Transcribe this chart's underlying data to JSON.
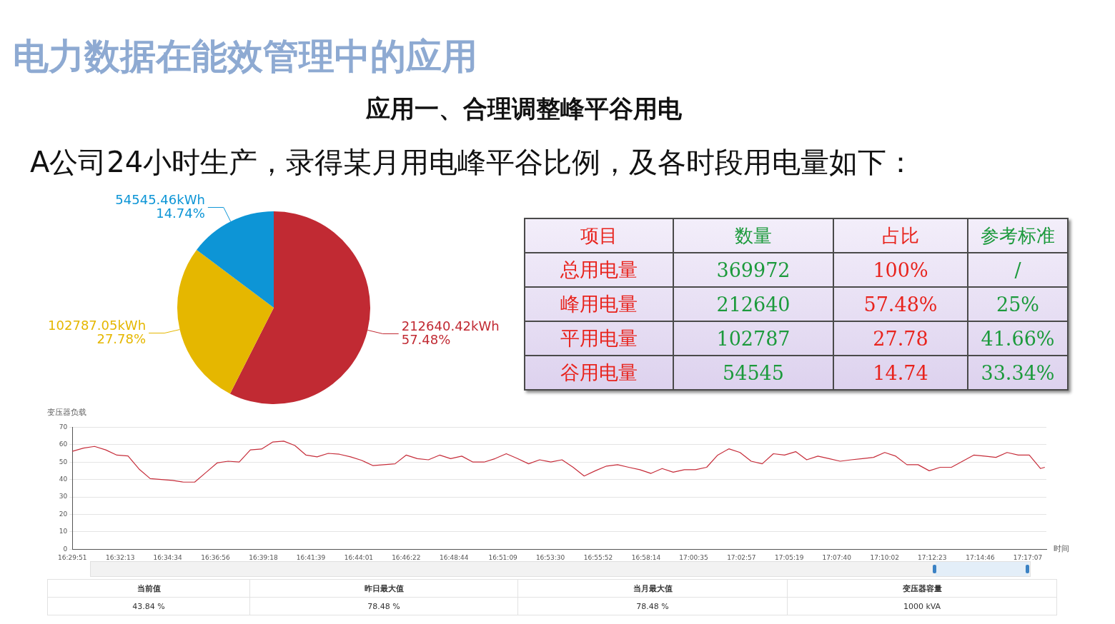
{
  "chart_data": [
    {
      "type": "pie",
      "title": "电力数据在能效管理中的应用",
      "annotations": [
        "A公司24小时生产，录得某月用电峰平谷比例，及各时段用电量如下："
      ],
      "categories": [
        null,
        null,
        null
      ],
      "values": [
        212640.42,
        102787.05,
        54545.46
      ],
      "colors": [
        "#c12a33",
        "#e5b700",
        "#0d95d6"
      ],
      "value_labels": [
        "212640.42kWh\n57.48%",
        "102787.05kWh\n27.78%",
        "54545.46kWh\n14.74%"
      ]
    },
    {
      "type": "other",
      "title": "应用一、合理调整峰平谷用电",
      "categories": [
        "项目",
        "数量",
        "占比",
        "参考标准"
      ],
      "annotations": [
        "总用电量",
        "369972",
        "100%",
        "/",
        "峰用电量",
        "212640",
        "57.48%",
        "25%",
        "平用电量",
        "102787",
        "27.78",
        "41.66%",
        "谷用电量",
        "54545",
        "14.74",
        "33.34%"
      ]
    },
    {
      "type": "line",
      "title": "变压器负载",
      "xlabel": "时间",
      "color": "#c62d3a",
      "marker": "none",
      "grid": "y",
      "x": [
        16.4975,
        16.5067,
        16.5158,
        16.525,
        16.5342,
        16.5434,
        16.5525,
        16.5617,
        16.5709,
        16.5801,
        16.5892,
        16.5984,
        16.6076,
        16.6168,
        16.6259,
        16.6351,
        16.6443,
        16.6535,
        16.6626,
        16.6718,
        16.681,
        16.6902,
        16.6993,
        16.7085,
        16.7177,
        16.7269,
        16.736,
        16.7452,
        16.7544,
        16.7636,
        16.7727,
        16.7819,
        16.7911,
        16.8003,
        16.8094,
        16.8186,
        16.8278,
        16.837,
        16.8461,
        16.8553,
        16.8645,
        16.8737,
        16.8828,
        16.892,
        16.9012,
        16.9104,
        16.9195,
        16.9287,
        16.9379,
        16.9471,
        16.9562,
        16.9654,
        16.9746,
        16.9838,
        16.9929,
        17.0021,
        17.0113,
        17.0205,
        17.0296,
        17.0388,
        17.048,
        17.0572,
        17.0663,
        17.0755,
        17.0847,
        17.0939,
        17.103,
        17.1122,
        17.1214,
        17.1306,
        17.1397,
        17.1489,
        17.1581,
        17.1673,
        17.1764,
        17.1856,
        17.1948,
        17.204,
        17.2131,
        17.2223,
        17.2315,
        17.2407,
        17.2498,
        17.259,
        17.2682,
        17.2774,
        17.2865,
        17.2957,
        17.2993
      ],
      "values": [
        56.2,
        58,
        59,
        57,
        54,
        53.5,
        46,
        40.5,
        40,
        39.5,
        38.5,
        38.5,
        44,
        49.5,
        50.5,
        50,
        57,
        57.5,
        61.5,
        62,
        59.5,
        54,
        53,
        55,
        54.5,
        53,
        51,
        48,
        48.5,
        49,
        54,
        52,
        51.3,
        54,
        52,
        53.4,
        50,
        50,
        52,
        54.8,
        52,
        49,
        51.3,
        50,
        51.3,
        47,
        42,
        45,
        47.7,
        48.5,
        47,
        45.6,
        43.5,
        46.3,
        44.2,
        45.6,
        45.6,
        47,
        54,
        57.6,
        55.5,
        50.5,
        49,
        54.8,
        54,
        56,
        51.3,
        53.4,
        52,
        50.5,
        51.3,
        52,
        52.7,
        55.5,
        53.4,
        48.5,
        48.5,
        45,
        47,
        47,
        50.5,
        54,
        53.4,
        52.7,
        55.5,
        54,
        54,
        46.3,
        47
      ],
      "xlim": [
        16.4975,
        17.3006
      ],
      "ylim": [
        0,
        70
      ],
      "yticks": [
        0,
        10,
        20,
        30,
        40,
        50,
        60,
        70
      ],
      "xticks": [
        {
          "value": 16.4975,
          "label": "16:29:51"
        },
        {
          "value": 16.53694,
          "label": "16:32:13"
        },
        {
          "value": 16.57611,
          "label": "16:34:34"
        },
        {
          "value": 16.61556,
          "label": "16:36:56"
        },
        {
          "value": 16.655,
          "label": "16:39:18"
        },
        {
          "value": 16.69417,
          "label": "16:41:39"
        },
        {
          "value": 16.73361,
          "label": "16:44:01"
        },
        {
          "value": 16.77278,
          "label": "16:46:22"
        },
        {
          "value": 16.81222,
          "label": "16:48:44"
        },
        {
          "value": 16.8525,
          "label": "16:51:09"
        },
        {
          "value": 16.89167,
          "label": "16:53:30"
        },
        {
          "value": 16.93111,
          "label": "16:55:52"
        },
        {
          "value": 16.97056,
          "label": "16:58:14"
        },
        {
          "value": 17.00972,
          "label": "17:00:35"
        },
        {
          "value": 17.04917,
          "label": "17:02:57"
        },
        {
          "value": 17.08861,
          "label": "17:05:19"
        },
        {
          "value": 17.12778,
          "label": "17:07:40"
        },
        {
          "value": 17.16722,
          "label": "17:10:02"
        },
        {
          "value": 17.20639,
          "label": "17:12:23"
        },
        {
          "value": 17.24611,
          "label": "17:14:46"
        },
        {
          "value": 17.28528,
          "label": "17:17:07"
        }
      ],
      "annotations": [
        "当前值",
        "昨日最大值",
        "当月最大值",
        "变压器容量",
        "43.84 %",
        "78.48 %",
        "78.48 %",
        "1000 kVA"
      ]
    }
  ]
}
